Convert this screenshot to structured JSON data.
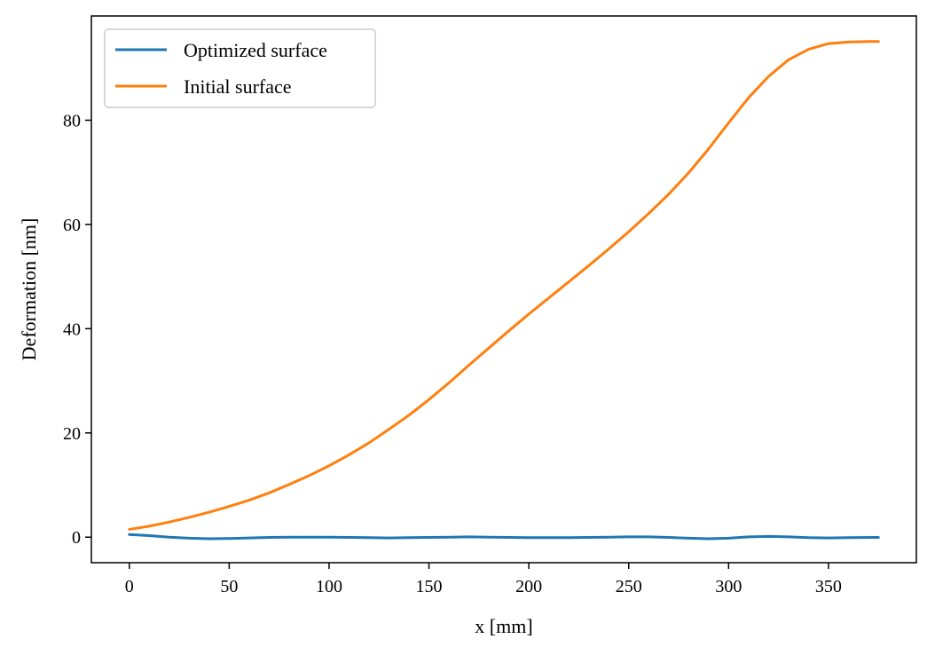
{
  "chart_data": {
    "type": "line",
    "title": "",
    "xlabel": "x [mm]",
    "ylabel": "Deformation [nm]",
    "xlim": [
      -19,
      394
    ],
    "ylim": [
      -4.9,
      100
    ],
    "xticks": [
      0,
      50,
      100,
      150,
      200,
      250,
      300,
      350
    ],
    "yticks": [
      0,
      20,
      40,
      60,
      80
    ],
    "grid": false,
    "legend_position": "upper-left",
    "series": [
      {
        "name": "Optimized surface",
        "color": "#1f77b4",
        "x": [
          0,
          10,
          20,
          30,
          40,
          50,
          60,
          70,
          80,
          90,
          100,
          110,
          120,
          130,
          140,
          150,
          160,
          170,
          180,
          190,
          200,
          210,
          220,
          230,
          240,
          250,
          260,
          270,
          280,
          290,
          300,
          310,
          320,
          330,
          340,
          350,
          360,
          375
        ],
        "y": [
          0.5,
          0.3,
          0.0,
          -0.2,
          -0.3,
          -0.25,
          -0.15,
          -0.05,
          0.0,
          0.0,
          0.0,
          -0.05,
          -0.1,
          -0.15,
          -0.1,
          -0.05,
          0.0,
          0.05,
          0.0,
          -0.05,
          -0.1,
          -0.1,
          -0.1,
          -0.05,
          0.0,
          0.05,
          0.05,
          -0.05,
          -0.2,
          -0.3,
          -0.2,
          0.05,
          0.15,
          0.05,
          -0.1,
          -0.15,
          -0.1,
          -0.05
        ]
      },
      {
        "name": "Initial surface",
        "color": "#ff7f0e",
        "x": [
          0,
          10,
          20,
          30,
          40,
          50,
          60,
          70,
          80,
          90,
          100,
          110,
          120,
          130,
          140,
          150,
          160,
          170,
          180,
          190,
          200,
          210,
          220,
          230,
          240,
          250,
          260,
          270,
          280,
          290,
          300,
          310,
          320,
          330,
          340,
          350,
          360,
          370,
          375
        ],
        "y": [
          1.5,
          2.1,
          2.9,
          3.8,
          4.8,
          5.9,
          7.1,
          8.5,
          10.1,
          11.8,
          13.7,
          15.8,
          18.1,
          20.7,
          23.4,
          26.4,
          29.6,
          33.0,
          36.3,
          39.6,
          42.8,
          45.9,
          49.0,
          52.1,
          55.3,
          58.6,
          62.1,
          65.8,
          69.9,
          74.5,
          79.5,
          84.3,
          88.4,
          91.6,
          93.6,
          94.7,
          95.0,
          95.1,
          95.1
        ]
      }
    ]
  }
}
